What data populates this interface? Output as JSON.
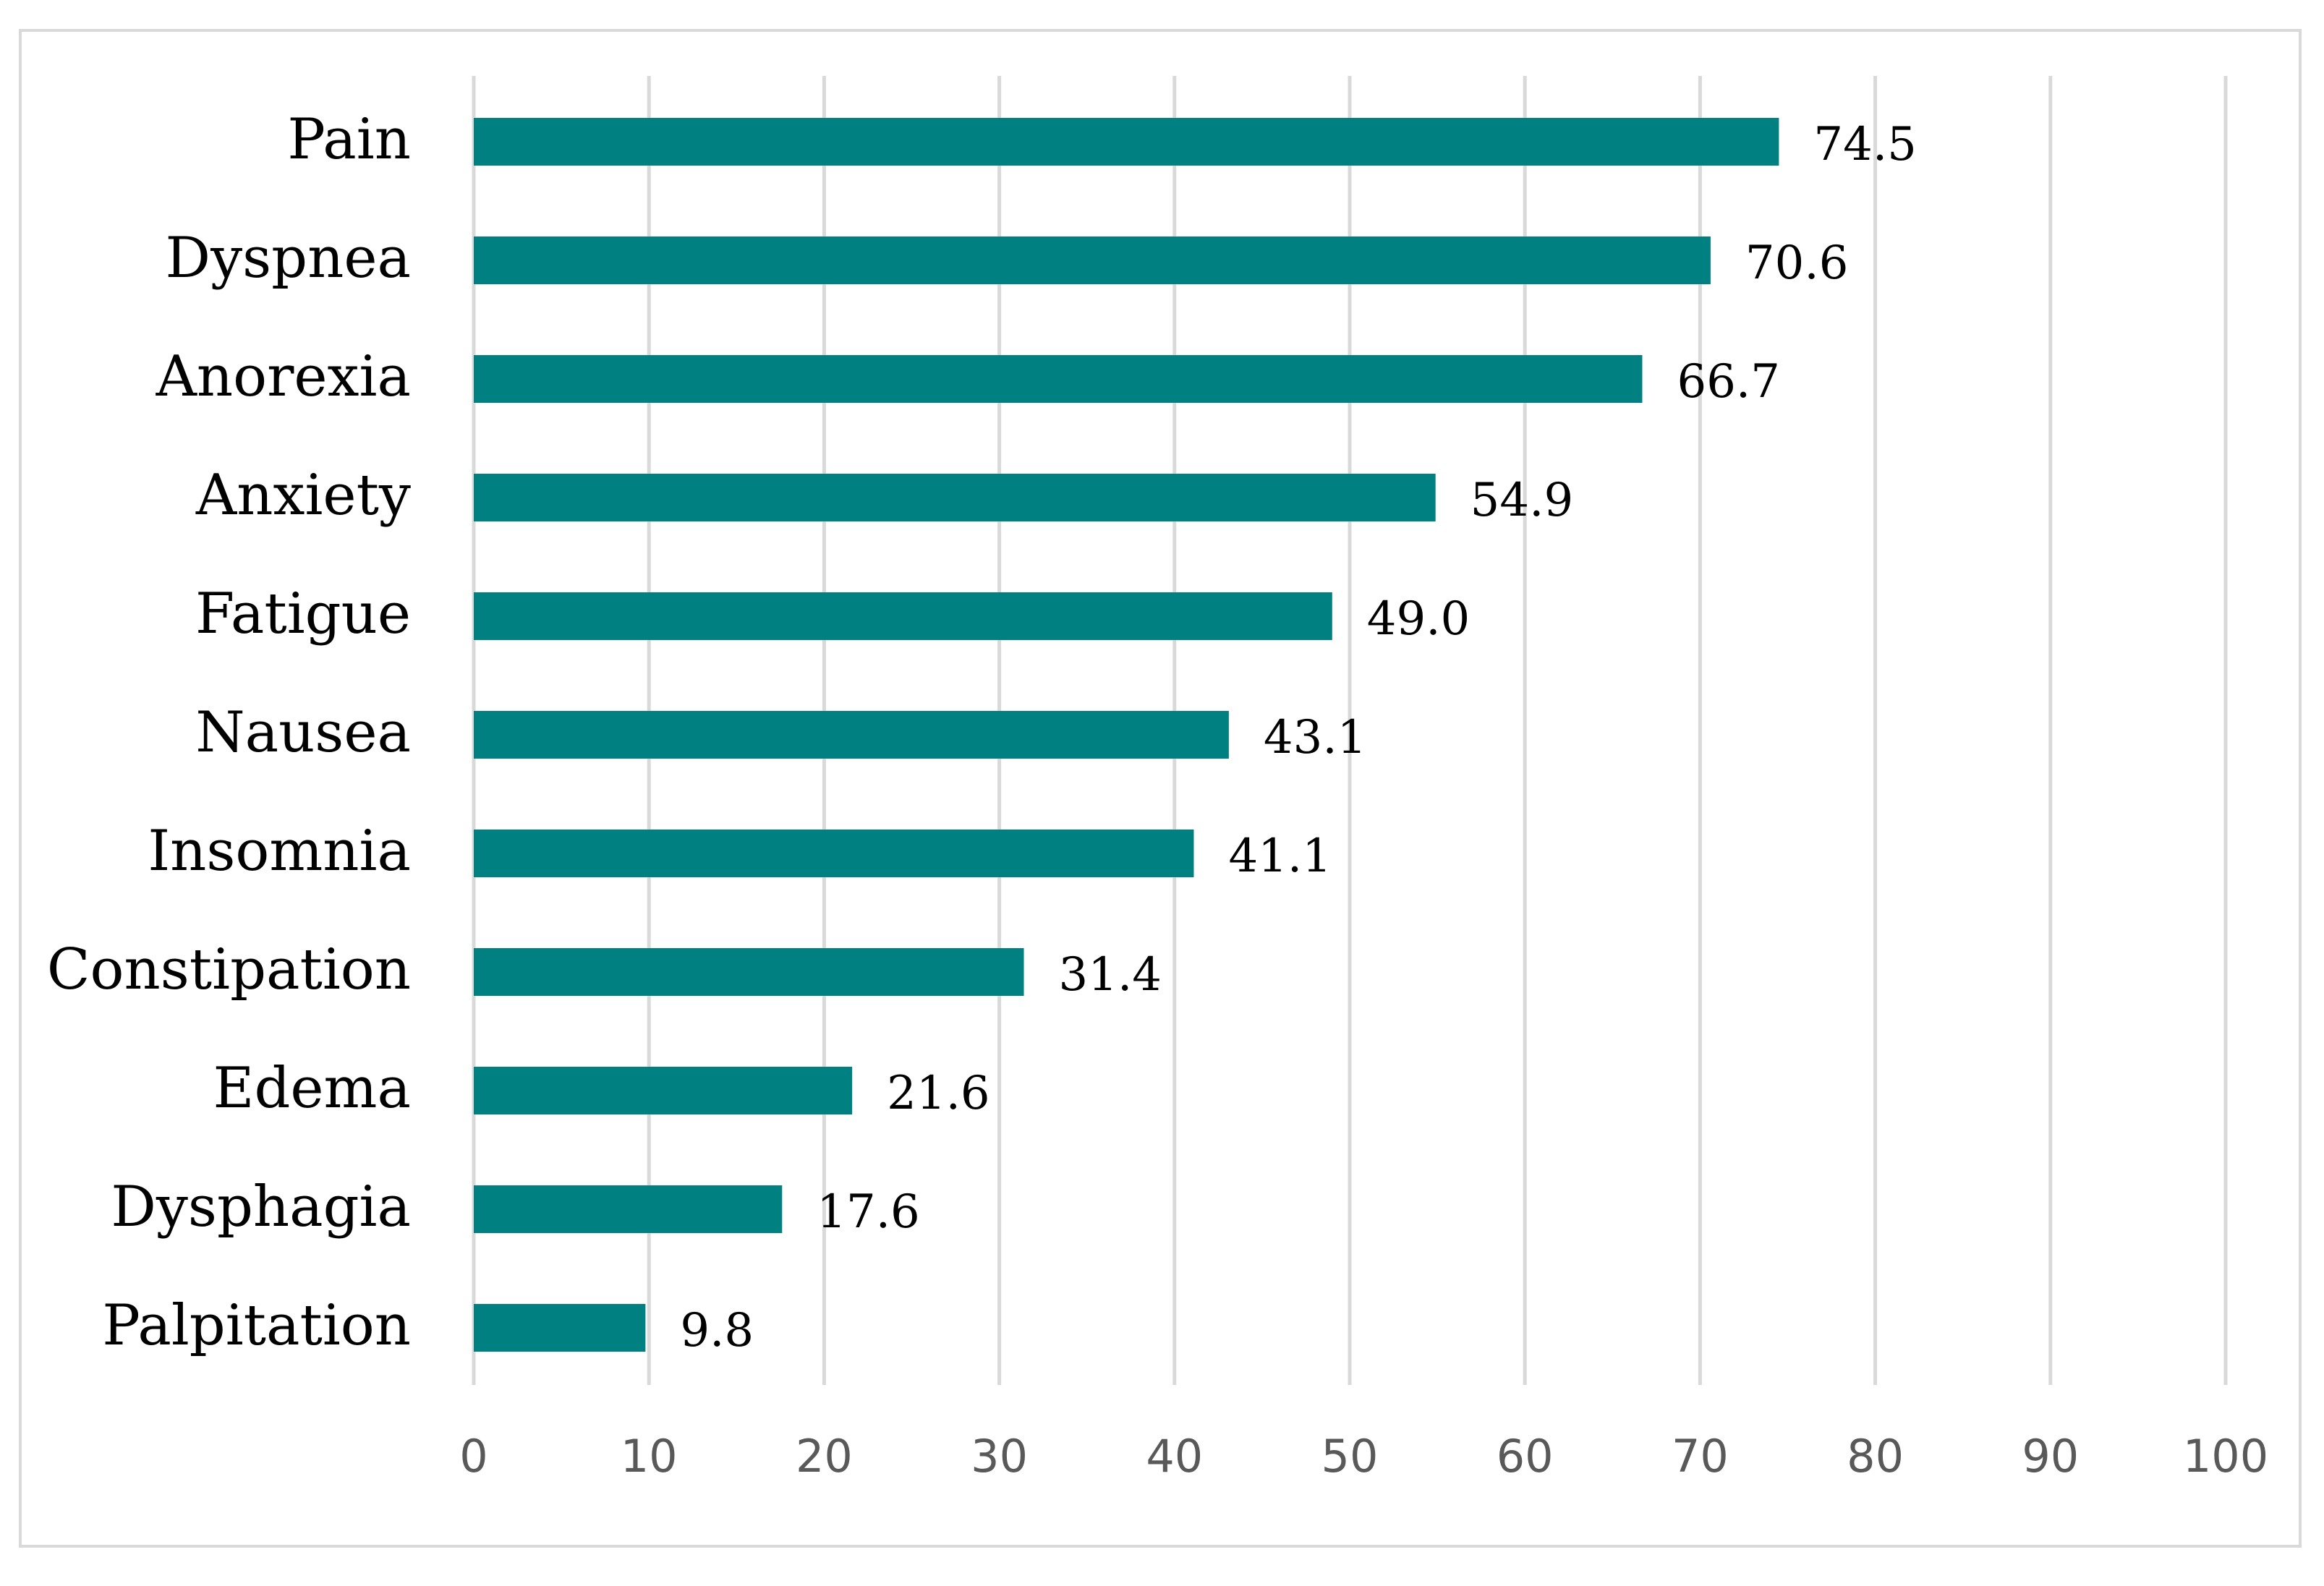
{
  "chart_data": {
    "type": "bar",
    "orientation": "horizontal",
    "categories": [
      "Pain",
      "Dyspnea",
      "Anorexia",
      "Anxiety",
      "Fatigue",
      "Nausea",
      "Insomnia",
      "Constipation",
      "Edema",
      "Dysphagia",
      "Palpitation"
    ],
    "values": [
      74.5,
      70.6,
      66.7,
      54.9,
      49.0,
      43.1,
      41.1,
      31.4,
      21.6,
      17.6,
      9.8
    ],
    "value_labels": [
      "74.5",
      "70.6",
      "66.7",
      "54.9",
      "49.0",
      "43.1",
      "41.1",
      "31.4",
      "21.6",
      "17.6",
      "9.8"
    ],
    "title": "",
    "xlabel": "",
    "ylabel": "",
    "xlim": [
      0,
      100
    ],
    "ticks": [
      "0",
      "10",
      "20",
      "30",
      "40",
      "50",
      "60",
      "70",
      "80",
      "90",
      "100"
    ],
    "grid": true,
    "bar_color": "#008080",
    "grid_color": "#d9d9d9",
    "tick_color": "#595959"
  }
}
